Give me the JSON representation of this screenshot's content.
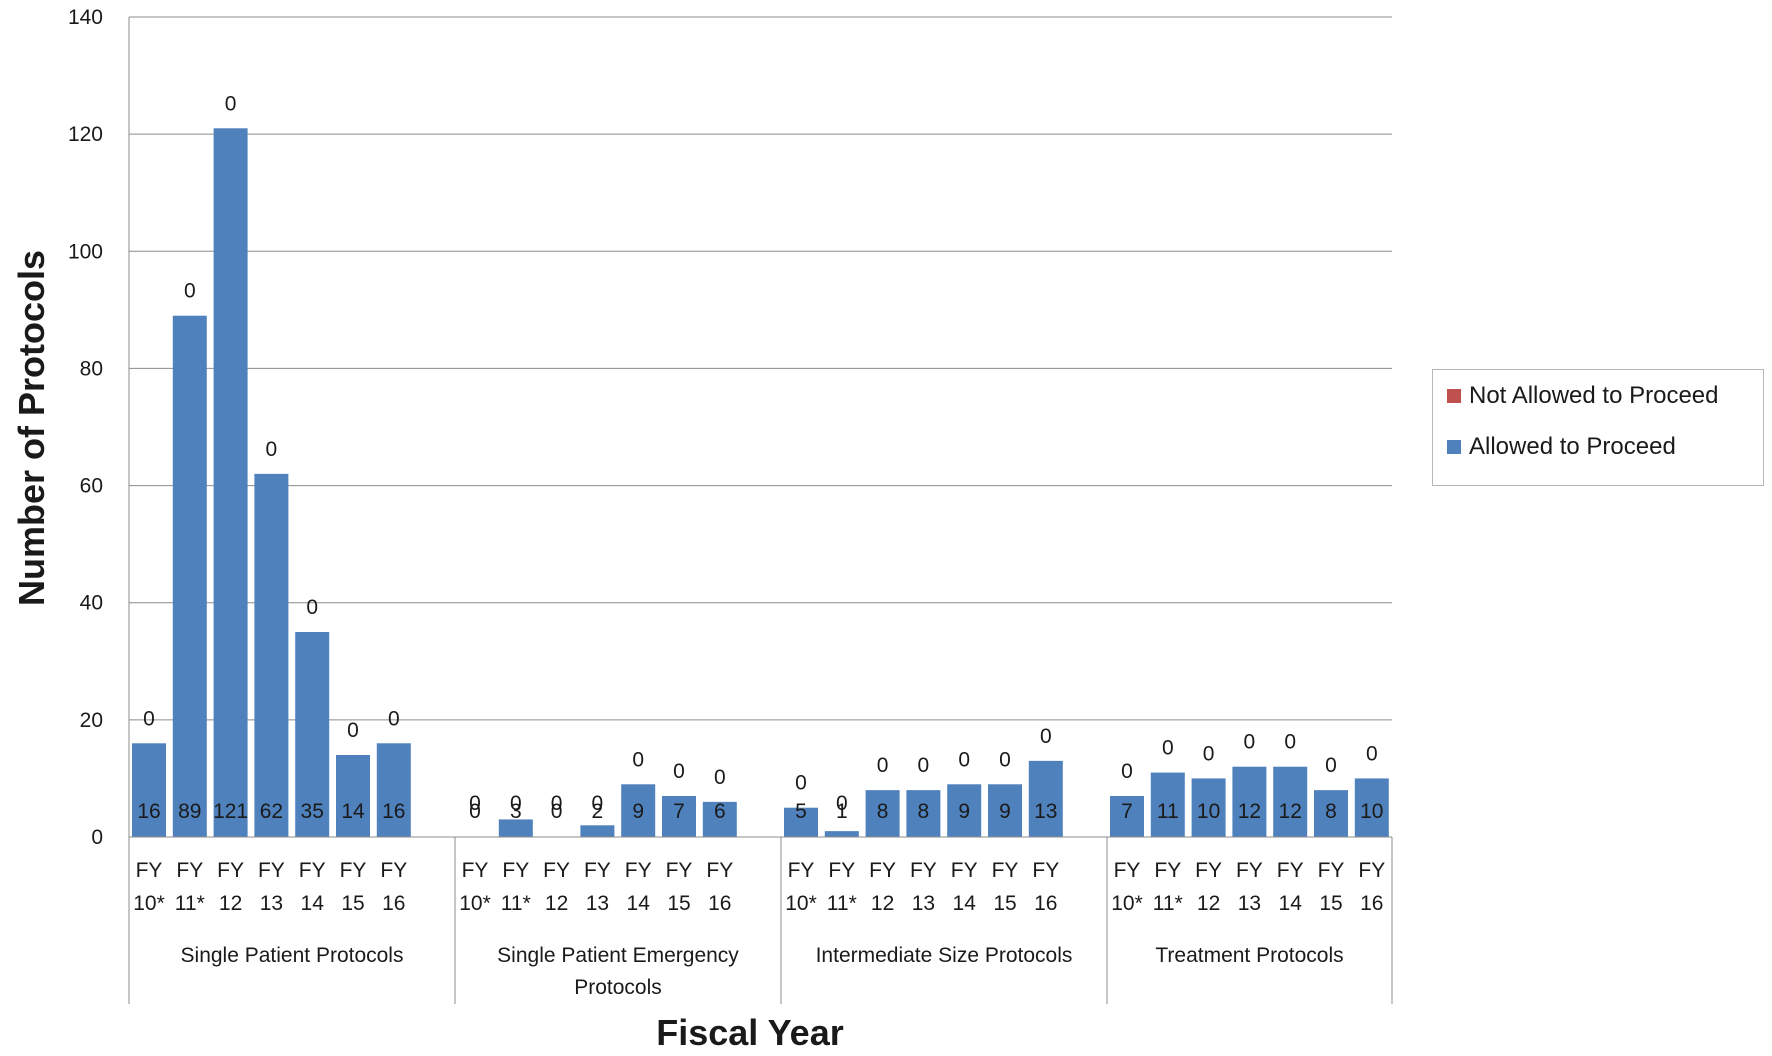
{
  "chart_data": {
    "type": "bar",
    "stacked": true,
    "title": "",
    "xlabel": "Fiscal Year",
    "ylabel": "Number of Protocols",
    "ylim": [
      0,
      140
    ],
    "yticks": [
      0,
      20,
      40,
      60,
      80,
      100,
      120,
      140
    ],
    "grid": true,
    "legend_position": "right",
    "groups": [
      {
        "label": "Single Patient Protocols",
        "categories": [
          "FY 10*",
          "FY 11*",
          "FY 12",
          "FY 13",
          "FY 14",
          "FY 15",
          "FY 16"
        ]
      },
      {
        "label": "Single Patient Emergency Protocols",
        "categories": [
          "FY 10*",
          "FY 11*",
          "FY 12",
          "FY 13",
          "FY 14",
          "FY 15",
          "FY 16"
        ]
      },
      {
        "label": "Intermediate Size Protocols",
        "categories": [
          "FY 10*",
          "FY 11*",
          "FY 12",
          "FY 13",
          "FY 14",
          "FY 15",
          "FY 16"
        ]
      },
      {
        "label": "Treatment Protocols",
        "categories": [
          "FY 10*",
          "FY 11*",
          "FY 12",
          "FY 13",
          "FY 14",
          "FY 15",
          "FY 16"
        ]
      }
    ],
    "series": [
      {
        "name": "Allowed to Proceed",
        "color": "#4f81bd",
        "values": [
          [
            16,
            89,
            121,
            62,
            35,
            14,
            16
          ],
          [
            0,
            3,
            0,
            2,
            9,
            7,
            6
          ],
          [
            5,
            1,
            8,
            8,
            9,
            9,
            13
          ],
          [
            7,
            11,
            10,
            12,
            12,
            8,
            10
          ]
        ]
      },
      {
        "name": "Not Allowed to Proceed",
        "color": "#c0504d",
        "values": [
          [
            0,
            0,
            0,
            0,
            0,
            0,
            0
          ],
          [
            0,
            0,
            0,
            0,
            0,
            0,
            0
          ],
          [
            0,
            0,
            0,
            0,
            0,
            0,
            0
          ],
          [
            0,
            0,
            0,
            0,
            0,
            0,
            0
          ]
        ]
      }
    ]
  },
  "legend": {
    "items": [
      {
        "label": "Not Allowed to Proceed",
        "color": "#c0504d"
      },
      {
        "label": "Allowed to Proceed",
        "color": "#4f81bd"
      }
    ]
  }
}
